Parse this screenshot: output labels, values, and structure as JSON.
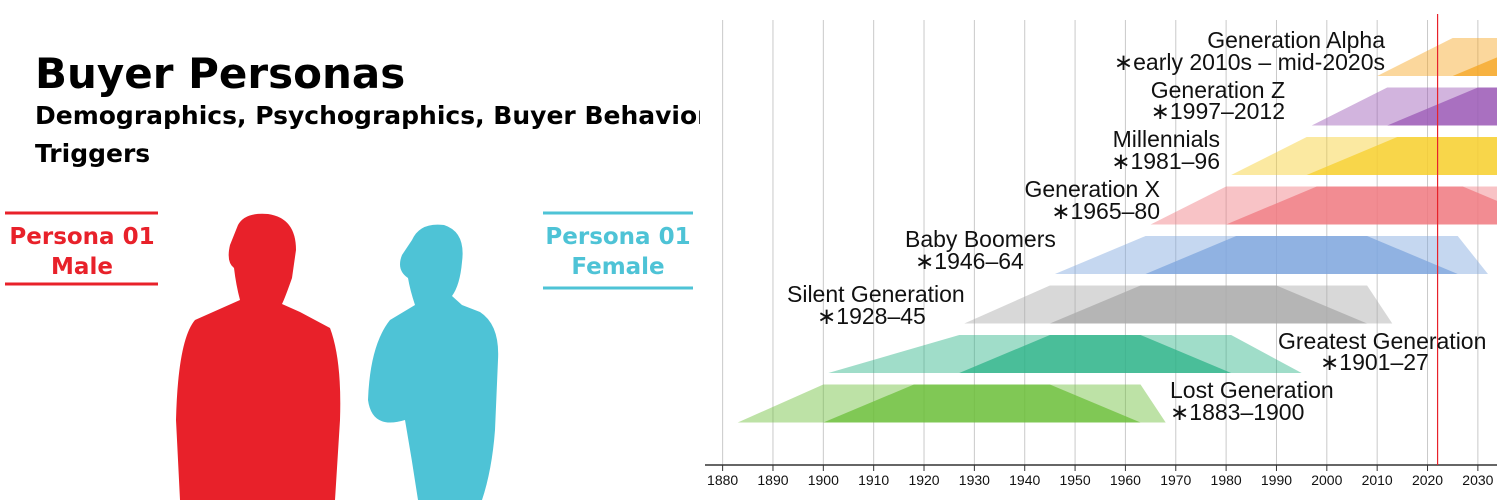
{
  "header": {
    "title": "Buyer Personas",
    "subtitle_line1": "Demographics, Psychographics, Buyer Behavior",
    "subtitle_line2": "Triggers"
  },
  "personas": [
    {
      "line1": "Persona 01",
      "line2": "Male",
      "color": "#e8212a"
    },
    {
      "line1": "Persona 01",
      "line2": "Female",
      "color": "#4ec3d6"
    }
  ],
  "chart_data": {
    "type": "timeline",
    "xlim": [
      1876.5,
      2033.8
    ],
    "xticks": [
      1880,
      1890,
      1900,
      1910,
      1920,
      1930,
      1940,
      1950,
      1960,
      1970,
      1980,
      1990,
      2000,
      2010,
      2020,
      2030
    ],
    "current_year": 2022,
    "current_year_color": "#e8212a",
    "series": [
      {
        "name": "Generation Alpha",
        "label": "∗early 2010s – mid-2020s",
        "start": 2010,
        "end": 2025,
        "color": "#f6a623"
      },
      {
        "name": "Generation Z",
        "label": "∗1997–2012",
        "start": 1997,
        "end": 2012,
        "color": "#9b59b6"
      },
      {
        "name": "Millennials",
        "label": "∗1981–96",
        "start": 1981,
        "end": 1996,
        "color": "#f7cf2e"
      },
      {
        "name": "Generation X",
        "label": "∗1965–80",
        "start": 1965,
        "end": 1980,
        "color": "#f07a80"
      },
      {
        "name": "Baby Boomers",
        "label": "∗1946–64",
        "start": 1946,
        "end": 1964,
        "color": "#7ea6dd"
      },
      {
        "name": "Silent Generation",
        "label": "∗1928–45",
        "start": 1928,
        "end": 1945,
        "color": "#a9a9a9"
      },
      {
        "name": "Greatest Generation",
        "label": "∗1901–27",
        "start": 1901,
        "end": 1927,
        "color": "#2db388"
      },
      {
        "name": "Lost Generation",
        "label": "∗1883–1900",
        "start": 1883,
        "end": 1900,
        "color": "#6cbf3a"
      }
    ]
  }
}
